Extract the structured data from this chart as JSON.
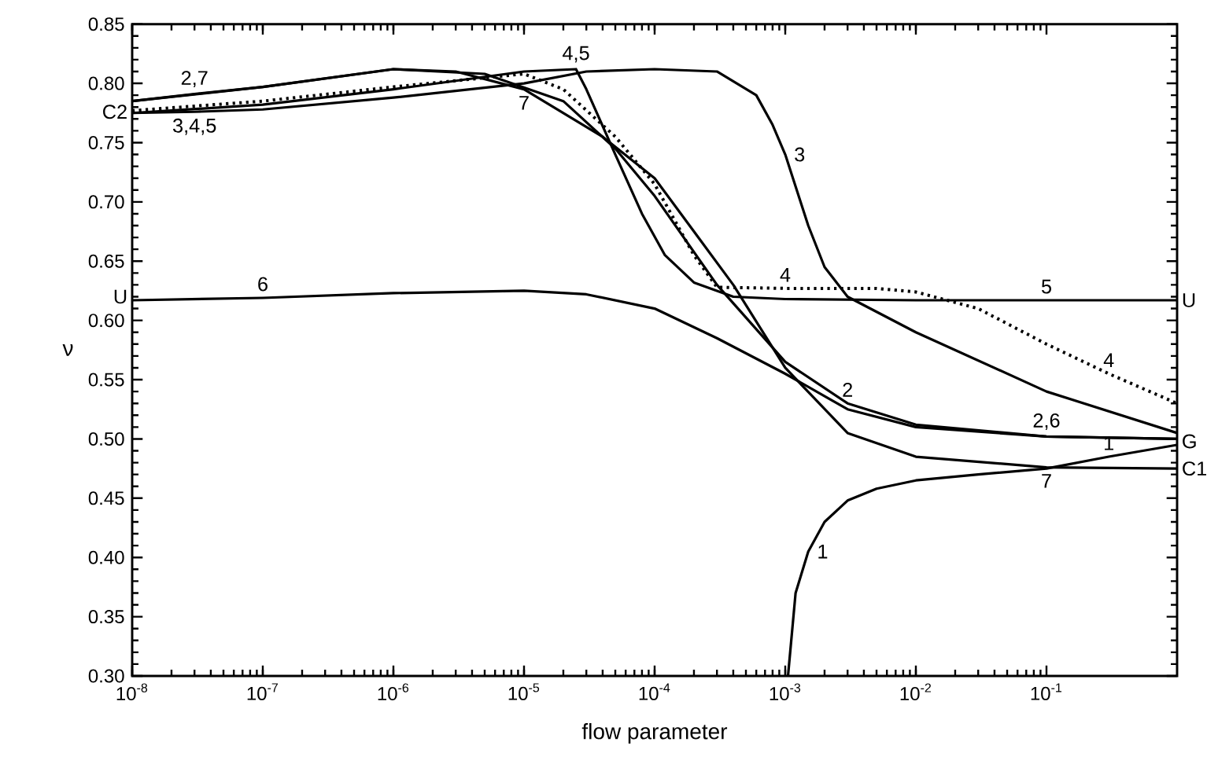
{
  "chart_data": {
    "type": "line",
    "xlabel": "flow parameter",
    "ylabel": "ν",
    "log": "x",
    "xlim": [
      1e-08,
      1
    ],
    "ylim": [
      0.3,
      0.85
    ],
    "xticks": [
      {
        "value": 1e-08,
        "label": "10$^{-8}$"
      },
      {
        "value": 1e-07,
        "label": "10$^{-7}$"
      },
      {
        "value": 1e-06,
        "label": "10$^{-6}$"
      },
      {
        "value": 1e-05,
        "label": "10$^{-5}$"
      },
      {
        "value": 0.0001,
        "label": "10$^{-4}$"
      },
      {
        "value": 0.001,
        "label": "10$^{-3}$"
      },
      {
        "value": 0.01,
        "label": "10$^{-2}$"
      },
      {
        "value": 0.1,
        "label": "10$^{-1}$"
      }
    ],
    "yticks": [
      {
        "value": 0.3,
        "label": "0.30"
      },
      {
        "value": 0.35,
        "label": "0.35"
      },
      {
        "value": 0.4,
        "label": "0.40"
      },
      {
        "value": 0.45,
        "label": "0.45"
      },
      {
        "value": 0.5,
        "label": "0.50"
      },
      {
        "value": 0.55,
        "label": "0.55"
      },
      {
        "value": 0.6,
        "label": "0.60"
      },
      {
        "value": 0.65,
        "label": "0.65"
      },
      {
        "value": 0.7,
        "label": "0.70"
      },
      {
        "value": 0.75,
        "label": "0.75"
      },
      {
        "value": 0.8,
        "label": "0.80"
      },
      {
        "value": 0.85,
        "label": "0.85"
      }
    ],
    "marker": "none",
    "series": [
      {
        "color": "#000000",
        "line_style": "solid",
        "x": [
          0.00105,
          0.0012,
          0.0015,
          0.002,
          0.003,
          0.005,
          0.01,
          0.03,
          0.1,
          0.3,
          1
        ],
        "values": [
          0.3,
          0.37,
          0.405,
          0.43,
          0.448,
          0.458,
          0.465,
          0.47,
          0.475,
          0.485,
          0.495
        ]
      },
      {
        "color": "#000000",
        "line_style": "solid",
        "x": [
          1e-08,
          1e-07,
          1e-06,
          5e-06,
          2e-05,
          5e-05,
          0.0001,
          0.0003,
          0.001,
          0.003,
          0.01,
          0.1,
          1
        ],
        "values": [
          0.785,
          0.797,
          0.812,
          0.808,
          0.785,
          0.745,
          0.705,
          0.63,
          0.565,
          0.53,
          0.512,
          0.502,
          0.5
        ]
      },
      {
        "color": "#000000",
        "line_style": "solid",
        "x": [
          1e-08,
          3e-08,
          1e-07,
          1e-06,
          1e-05,
          3e-05,
          0.0001,
          0.0003,
          0.0006,
          0.0008,
          0.001,
          0.0015,
          0.002,
          0.003,
          0.01,
          0.1,
          1
        ],
        "values": [
          0.775,
          0.776,
          0.778,
          0.788,
          0.8,
          0.81,
          0.812,
          0.81,
          0.79,
          0.765,
          0.74,
          0.68,
          0.645,
          0.62,
          0.59,
          0.54,
          0.505
        ]
      },
      {
        "color": "#000000",
        "line_style": "dotted",
        "x": [
          1e-08,
          1e-07,
          1e-06,
          1e-05,
          2e-05,
          5e-05,
          0.0001,
          0.0002,
          0.0003,
          0.001,
          0.005,
          0.01,
          0.03,
          0.1,
          0.3,
          1
        ],
        "values": [
          0.777,
          0.785,
          0.797,
          0.808,
          0.795,
          0.755,
          0.715,
          0.655,
          0.628,
          0.627,
          0.627,
          0.624,
          0.61,
          0.58,
          0.555,
          0.53
        ]
      },
      {
        "color": "#000000",
        "line_style": "solid",
        "x": [
          1e-08,
          1e-07,
          1e-06,
          1e-05,
          2.5e-05,
          3e-05,
          5e-05,
          8e-05,
          0.00012,
          0.0002,
          0.0004,
          0.001,
          0.01,
          0.1,
          1
        ],
        "values": [
          0.775,
          0.782,
          0.795,
          0.81,
          0.812,
          0.795,
          0.74,
          0.69,
          0.655,
          0.632,
          0.62,
          0.618,
          0.617,
          0.617,
          0.617
        ]
      },
      {
        "color": "#000000",
        "line_style": "solid",
        "x": [
          1e-08,
          1e-07,
          1e-06,
          1e-05,
          3e-05,
          0.0001,
          0.0003,
          0.001,
          0.003,
          0.01,
          0.1,
          1
        ],
        "values": [
          0.617,
          0.619,
          0.623,
          0.625,
          0.622,
          0.61,
          0.585,
          0.555,
          0.525,
          0.51,
          0.502,
          0.5
        ]
      },
      {
        "color": "#000000",
        "line_style": "solid",
        "x": [
          1e-08,
          3e-08,
          1e-07,
          1e-06,
          3e-06,
          1e-05,
          4e-05,
          0.0001,
          0.0002,
          0.0004,
          0.001,
          0.003,
          0.01,
          0.1,
          1
        ],
        "values": [
          0.785,
          0.791,
          0.797,
          0.812,
          0.81,
          0.795,
          0.755,
          0.72,
          0.675,
          0.63,
          0.56,
          0.505,
          0.485,
          0.476,
          0.475
        ]
      }
    ],
    "annotations": [
      {
        "text": "2,7",
        "x": 3e-08,
        "y": 0.791
      },
      {
        "text": "C2",
        "x": 1e-08,
        "y": 0.776
      },
      {
        "text": "3,4,5",
        "x": 3e-08,
        "y": 0.776
      },
      {
        "text": "U",
        "x": 1e-08,
        "y": 0.62
      },
      {
        "text": "6",
        "x": 1e-07,
        "y": 0.619
      },
      {
        "text": "7",
        "x": 1e-05,
        "y": 0.795
      },
      {
        "text": "4,5",
        "x": 2.5e-05,
        "y": 0.812
      },
      {
        "text": "2",
        "x": 0.003,
        "y": 0.53
      },
      {
        "text": "3",
        "x": 0.001,
        "y": 0.74
      },
      {
        "text": "4",
        "x": 0.001,
        "y": 0.627
      },
      {
        "text": "5",
        "x": 0.1,
        "y": 0.617
      },
      {
        "text": "U",
        "x": 1,
        "y": 0.617
      },
      {
        "text": "4",
        "x": 0.3,
        "y": 0.555
      },
      {
        "text": "2,6",
        "x": 0.1,
        "y": 0.502
      },
      {
        "text": "G",
        "x": 1,
        "y": 0.498
      },
      {
        "text": "1",
        "x": 0.3,
        "y": 0.485
      },
      {
        "text": "C1",
        "x": 1,
        "y": 0.475
      },
      {
        "text": "7",
        "x": 0.1,
        "y": 0.476
      },
      {
        "text": "1",
        "x": 0.0015,
        "y": 0.405
      }
    ]
  }
}
